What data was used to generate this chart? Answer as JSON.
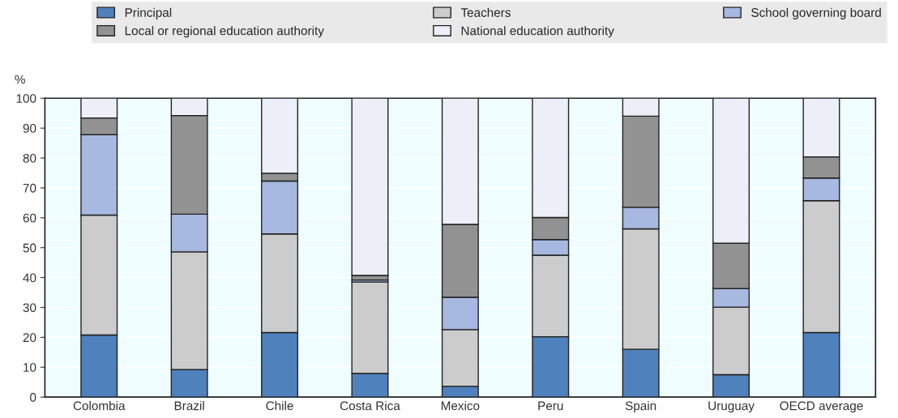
{
  "chart_data": {
    "type": "bar",
    "stacked": true,
    "ylabel": "%",
    "categories": [
      "Colombia",
      "Brazil",
      "Chile",
      "Costa Rica",
      "Mexico",
      "Peru",
      "Spain",
      "Uruguay",
      "OECD average"
    ],
    "series": [
      {
        "name": "Principal",
        "color": "#4f81bd",
        "values": [
          20.8,
          9.2,
          21.6,
          7.9,
          3.6,
          20.2,
          16.0,
          7.5,
          21.6
        ]
      },
      {
        "name": "Teachers",
        "color": "#cccccc",
        "values": [
          40.1,
          39.4,
          33.0,
          30.6,
          19.0,
          27.3,
          40.3,
          22.6,
          44.1
        ]
      },
      {
        "name": "School governing board",
        "color": "#a7b8e1",
        "values": [
          26.9,
          12.6,
          17.7,
          0.7,
          10.8,
          5.2,
          7.2,
          6.2,
          7.6
        ]
      },
      {
        "name": "Local or regional education authority",
        "color": "#929292",
        "values": [
          5.6,
          33.0,
          2.6,
          1.5,
          24.4,
          7.4,
          30.5,
          15.2,
          7.1
        ]
      },
      {
        "name": "National education authority",
        "color": "#eceef8",
        "values": [
          6.6,
          5.8,
          25.1,
          59.3,
          42.2,
          39.9,
          6.0,
          48.5,
          19.6
        ]
      }
    ],
    "ylim": [
      0,
      100
    ],
    "yticks": [
      0,
      10,
      20,
      30,
      40,
      50,
      60,
      70,
      80,
      90,
      100
    ],
    "grid": "y",
    "legend": "top"
  }
}
